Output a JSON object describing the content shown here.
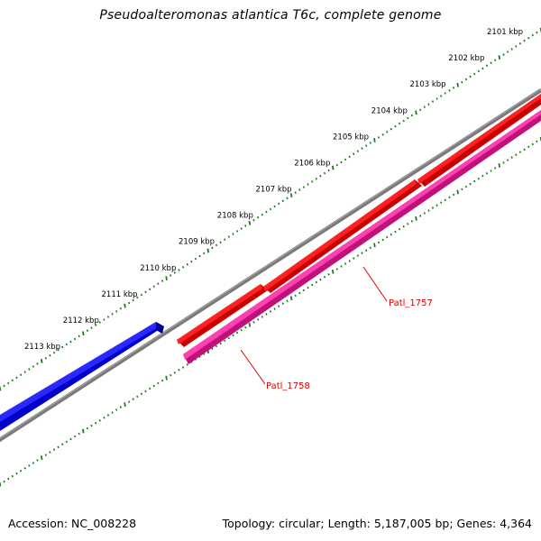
{
  "title": "Pseudoalteromonas atlantica T6c, complete genome",
  "footer": {
    "accession": "Accession: NC_008228",
    "summary": "Topology: circular; Length: 5,187,005 bp; Genes: 4,364"
  },
  "ruler": {
    "ticks": [
      "2101 kbp",
      "2102 kbp",
      "2103 kbp",
      "2104 kbp",
      "2105 kbp",
      "2106 kbp",
      "2107 kbp",
      "2108 kbp",
      "2109 kbp",
      "2110 kbp",
      "2111 kbp",
      "2112 kbp",
      "2113 kbp"
    ],
    "color": "#1e7a1e"
  },
  "backbone_color": "#808080",
  "features": [
    {
      "name": "",
      "strand": "forward",
      "color": "#1010e0",
      "type": "CDS"
    },
    {
      "name": "",
      "strand": "reverse",
      "color": "#e80000",
      "type": "CDS"
    },
    {
      "name": "Patl_1757",
      "strand": "reverse",
      "color": "#e80000",
      "type": "CDS"
    },
    {
      "name": "Patl_1758",
      "strand": "reverse",
      "color": "#e81e90",
      "type": "CDS"
    }
  ],
  "labels": {
    "patl_1757": "Patl_1757",
    "patl_1758": "Patl_1758"
  }
}
